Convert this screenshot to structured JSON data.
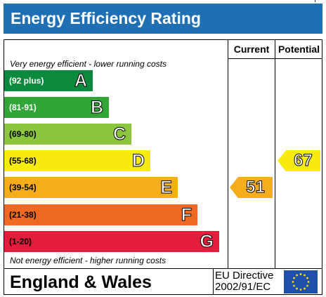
{
  "header": {
    "title": "Energy Efficiency Rating"
  },
  "columns": {
    "current": "Current",
    "potential": "Potential"
  },
  "notes": {
    "top": "Very energy efficient - lower running costs",
    "bottom": "Not energy efficient - higher running costs"
  },
  "footer": {
    "region": "England & Wales",
    "directive_line1": "EU Directive",
    "directive_line2": "2002/91/EC"
  },
  "chart_data": {
    "type": "bar",
    "title": "Energy Efficiency Rating",
    "categories": [
      "A",
      "B",
      "C",
      "D",
      "E",
      "F",
      "G"
    ],
    "ranges": [
      "(92 plus)",
      "(81-91)",
      "(69-80)",
      "(55-68)",
      "(39-54)",
      "(21-38)",
      "(1-20)"
    ],
    "colors": [
      "#008054",
      "#19b459",
      "#8dce46",
      "#ffd500",
      "#fcaa65",
      "#ef8023",
      "#e9153b"
    ],
    "band_colors": [
      "#0b8a3e",
      "#31a537",
      "#8cc63e",
      "#f7ec0e",
      "#f6ad1c",
      "#ee6a23",
      "#e31d3c"
    ],
    "current": {
      "value": 51,
      "band": "E",
      "color": "#f6ad1c"
    },
    "potential": {
      "value": 67,
      "band": "D",
      "color": "#f7ec0e"
    }
  }
}
